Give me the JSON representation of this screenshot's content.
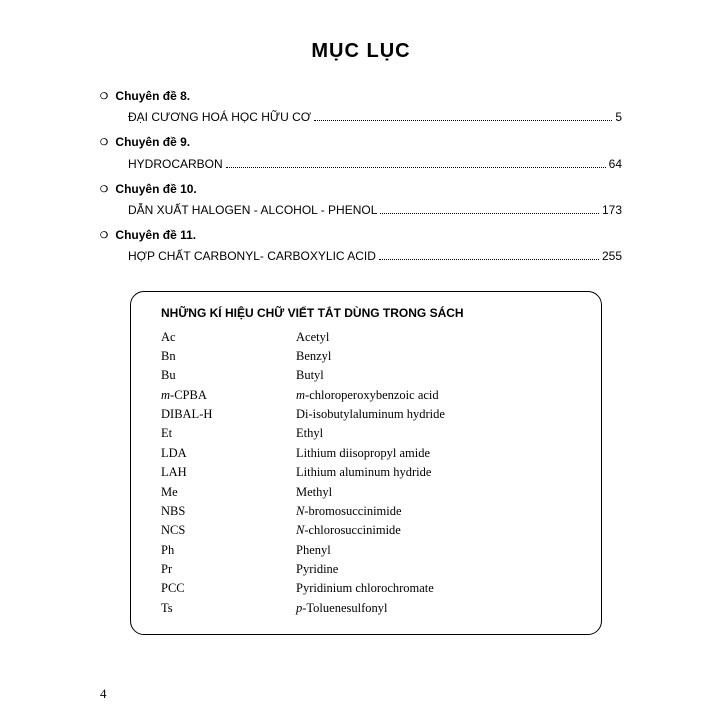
{
  "title": "MỤC LỤC",
  "toc": [
    {
      "section": "Chuyên đề 8.",
      "label": "ĐẠI CƯƠNG HOÁ HỌC HỮU CƠ",
      "page": "5"
    },
    {
      "section": "Chuyên đề 9.",
      "label": "HYDROCARBON",
      "page": "64"
    },
    {
      "section": "Chuyên đề 10.",
      "label": "DẪN XUẤT HALOGEN - ALCOHOL - PHENOL",
      "page": "173"
    },
    {
      "section": "Chuyên đề 11.",
      "label": "HỢP CHẤT CARBONYL- CARBOXYLIC ACID",
      "page": "255"
    }
  ],
  "abbrev": {
    "title": "NHỮNG KÍ HIỆU CHỮ VIẾT TẮT DÙNG TRONG SÁCH",
    "rows": [
      {
        "k": "Ac",
        "v": "Acetyl"
      },
      {
        "k": "Bn",
        "v": "Benzyl"
      },
      {
        "k": "Bu",
        "v": "Butyl"
      },
      {
        "k_prefix_italic": "m",
        "k_rest": "-CPBA",
        "v_prefix_italic": "m",
        "v_rest": "-chloroperoxybenzoic acid"
      },
      {
        "k": "DIBAL-H",
        "v": "Di-isobutylaluminum hydride"
      },
      {
        "k": "Et",
        "v": "Ethyl"
      },
      {
        "k": "LDA",
        "v": "Lithium diisopropyl amide"
      },
      {
        "k": "LAH",
        "v": "Lithium aluminum hydride"
      },
      {
        "k": "Me",
        "v": "Methyl"
      },
      {
        "k": "NBS",
        "v_prefix_italic": "N",
        "v_rest": "-bromosuccinimide"
      },
      {
        "k": "NCS",
        "v_prefix_italic": "N",
        "v_rest": "-chlorosuccinimide"
      },
      {
        "k": "Ph",
        "v": "Phenyl"
      },
      {
        "k": "Pr",
        "v": "Pyridine"
      },
      {
        "k": "PCC",
        "v": "Pyridinium chlorochromate"
      },
      {
        "k": "Ts",
        "v_prefix_italic": "p",
        "v_rest": "-Toluenesulfonyl"
      }
    ]
  },
  "page_number": "4"
}
